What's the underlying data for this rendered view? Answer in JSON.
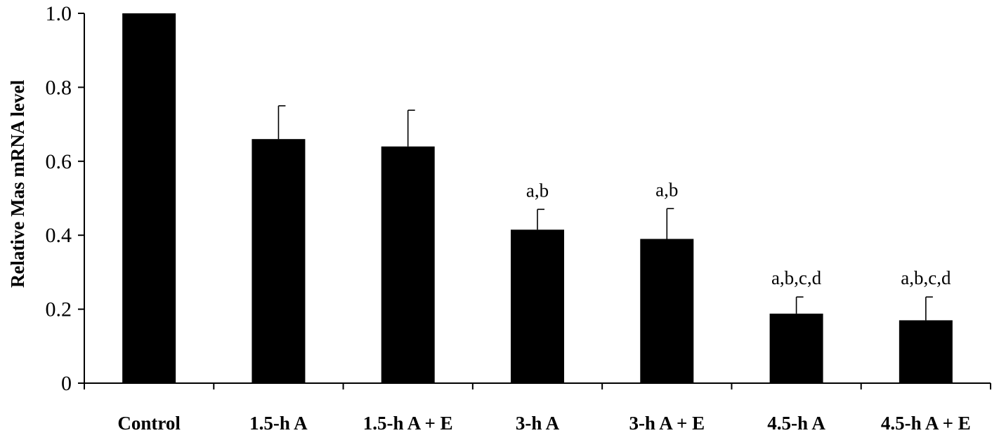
{
  "chart_data": {
    "type": "bar",
    "title": "",
    "xlabel": "",
    "ylabel": "Relative Mas mRNA level",
    "categories": [
      "Control",
      "1.5-h A",
      "1.5-h A + E",
      "3-h A",
      "3-h A + E",
      "4.5-h A",
      "4.5-h A + E"
    ],
    "values": [
      1.0,
      0.66,
      0.64,
      0.415,
      0.39,
      0.188,
      0.17
    ],
    "error_plus": [
      0,
      0.09,
      0.098,
      0.055,
      0.082,
      0.045,
      0.063
    ],
    "annotations": [
      "",
      "",
      "",
      "a,b",
      "a,b",
      "a,b,c,d",
      "a,b,c,d"
    ],
    "ylim": [
      0,
      1.0
    ],
    "yticks": [
      0,
      0.2,
      0.4,
      0.6,
      0.8,
      1.0
    ],
    "ytick_labels": [
      "0",
      "0.2",
      "0.4",
      "0.6",
      "0.8",
      "1.0"
    ],
    "grid": false,
    "legend": "none",
    "bar_color": "#000000"
  }
}
